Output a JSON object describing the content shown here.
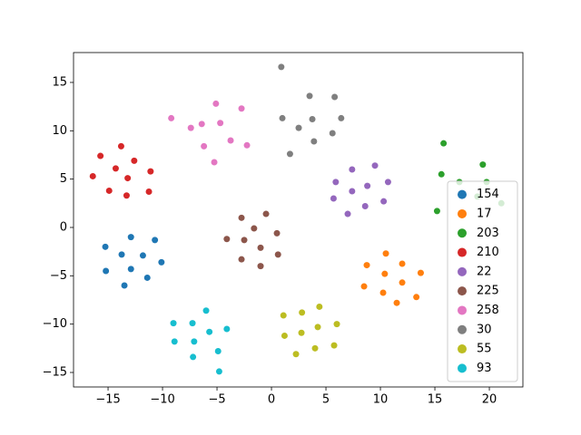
{
  "chart_data": {
    "type": "scatter",
    "xlim": [
      -18.17,
      23.08
    ],
    "ylim": [
      -16.5,
      18.09
    ],
    "xticks": [
      {
        "value": -15,
        "label": "−15"
      },
      {
        "value": -10,
        "label": "−10"
      },
      {
        "value": -5,
        "label": "−5"
      },
      0,
      5,
      10,
      15,
      20
    ],
    "yticks": [
      {
        "value": -15,
        "label": "−15"
      },
      {
        "value": -10,
        "label": "−10"
      },
      {
        "value": -5,
        "label": "−5"
      },
      0,
      5,
      10,
      15
    ],
    "legend": "lower right",
    "series": [
      {
        "name": "154",
        "color": "#1f77b4",
        "x": [
          -12.9,
          -15.25,
          -10.7,
          -13.75,
          -11.8,
          -10.1,
          -15.2,
          -12.9,
          -11.4,
          -13.5
        ],
        "values": [
          -1.0,
          -2.0,
          -1.3,
          -2.8,
          -2.9,
          -3.6,
          -4.5,
          -4.3,
          -5.2,
          -6.0
        ]
      },
      {
        "name": "17",
        "color": "#ff7f0e",
        "x": [
          10.5,
          8.75,
          12.0,
          10.4,
          13.7,
          12.0,
          8.5,
          10.25,
          13.3,
          11.5
        ],
        "values": [
          -2.7,
          -3.9,
          -3.75,
          -4.8,
          -4.7,
          -5.7,
          -6.1,
          -6.75,
          -7.2,
          -7.8
        ]
      },
      {
        "name": "203",
        "color": "#2ca02c",
        "x": [
          15.8,
          19.4,
          15.6,
          17.25,
          19.75,
          18.9,
          15.2,
          21.1
        ],
        "values": [
          8.7,
          6.5,
          5.5,
          4.7,
          4.7,
          3.2,
          1.7,
          2.5
        ]
      },
      {
        "name": "210",
        "color": "#d62728",
        "x": [
          -13.8,
          -15.7,
          -12.6,
          -14.3,
          -11.1,
          -13.2,
          -16.4,
          -14.9,
          -11.25,
          -13.3
        ],
        "values": [
          8.4,
          7.4,
          6.9,
          6.1,
          5.8,
          5.1,
          5.3,
          3.8,
          3.7,
          3.3
        ]
      },
      {
        "name": "22",
        "color": "#9467bd",
        "x": [
          9.5,
          7.4,
          5.9,
          10.7,
          8.8,
          7.4,
          5.7,
          10.3,
          8.6,
          7.0
        ],
        "values": [
          6.4,
          6.0,
          4.7,
          4.7,
          4.3,
          3.75,
          3.0,
          2.7,
          2.2,
          1.4
        ]
      },
      {
        "name": "225",
        "color": "#8c564b",
        "x": [
          -0.5,
          -2.75,
          -1.6,
          0.5,
          -4.1,
          -2.5,
          -1.0,
          0.6,
          -2.75,
          -1.0
        ],
        "values": [
          1.4,
          1.0,
          -0.1,
          -0.6,
          -1.2,
          -1.3,
          -2.1,
          -2.8,
          -3.3,
          -4.0
        ]
      },
      {
        "name": "258",
        "color": "#e377c2",
        "x": [
          -5.1,
          -2.75,
          -9.2,
          -4.7,
          -6.4,
          -7.4,
          -3.75,
          -6.2,
          -2.25,
          -5.25
        ],
        "values": [
          12.8,
          12.3,
          11.3,
          10.8,
          10.7,
          10.3,
          9.0,
          8.4,
          8.5,
          6.75
        ]
      },
      {
        "name": "30",
        "color": "#7f7f7f",
        "x": [
          0.9,
          3.5,
          5.8,
          1.0,
          3.75,
          6.4,
          2.5,
          5.6,
          3.9,
          1.7
        ],
        "values": [
          16.6,
          13.6,
          13.5,
          11.3,
          11.2,
          11.3,
          10.3,
          9.75,
          8.9,
          7.6
        ]
      },
      {
        "name": "55",
        "color": "#bcbd22",
        "x": [
          4.4,
          2.8,
          1.1,
          6.0,
          4.25,
          2.75,
          1.2,
          5.75,
          4.0,
          2.25
        ],
        "values": [
          -8.2,
          -8.8,
          -9.1,
          -10.0,
          -10.3,
          -10.9,
          -11.2,
          -12.2,
          -12.5,
          -13.1
        ]
      },
      {
        "name": "93",
        "color": "#17becf",
        "x": [
          -6.0,
          -9.0,
          -7.25,
          -4.1,
          -5.7,
          -8.9,
          -7.1,
          -4.9,
          -7.2,
          -4.8
        ],
        "values": [
          -8.6,
          -9.9,
          -9.9,
          -10.5,
          -10.8,
          -11.8,
          -11.8,
          -12.8,
          -13.4,
          -14.9
        ]
      }
    ]
  }
}
